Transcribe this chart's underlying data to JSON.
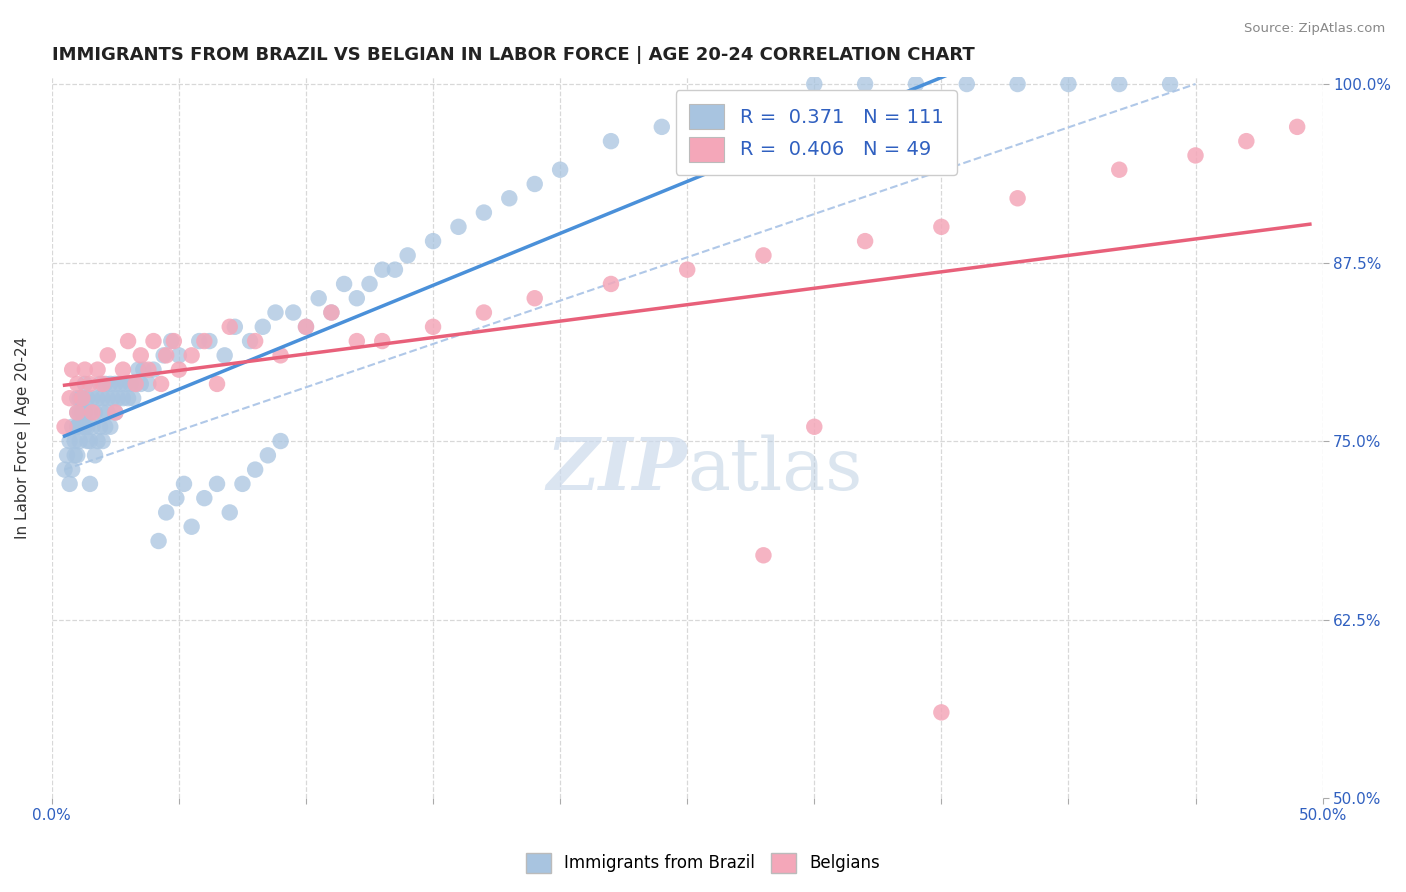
{
  "title": "IMMIGRANTS FROM BRAZIL VS BELGIAN IN LABOR FORCE | AGE 20-24 CORRELATION CHART",
  "source": "Source: ZipAtlas.com",
  "ylabel": "In Labor Force | Age 20-24",
  "xlim": [
    0.0,
    0.5
  ],
  "ylim": [
    0.5,
    1.005
  ],
  "brazil_R": 0.371,
  "brazil_N": 111,
  "belgian_R": 0.406,
  "belgian_N": 49,
  "brazil_color": "#a8c4e0",
  "belgian_color": "#f4a7b9",
  "brazil_line_color": "#4a90d9",
  "belgian_line_color": "#e8607a",
  "ref_line_color": "#b0c8e8",
  "background_color": "#ffffff",
  "grid_color": "#d8d8d8",
  "title_color": "#222222",
  "legend_text_color": "#3060c0",
  "watermark_color": "#dce8f4",
  "brazil_scatter_x": [
    0.005,
    0.006,
    0.007,
    0.007,
    0.008,
    0.008,
    0.009,
    0.009,
    0.01,
    0.01,
    0.01,
    0.01,
    0.01,
    0.011,
    0.011,
    0.011,
    0.012,
    0.012,
    0.012,
    0.013,
    0.013,
    0.013,
    0.014,
    0.014,
    0.014,
    0.015,
    0.015,
    0.015,
    0.016,
    0.016,
    0.017,
    0.017,
    0.018,
    0.018,
    0.019,
    0.019,
    0.02,
    0.02,
    0.02,
    0.021,
    0.021,
    0.022,
    0.022,
    0.023,
    0.023,
    0.024,
    0.025,
    0.025,
    0.026,
    0.027,
    0.028,
    0.029,
    0.03,
    0.031,
    0.032,
    0.033,
    0.034,
    0.035,
    0.036,
    0.038,
    0.04,
    0.042,
    0.044,
    0.045,
    0.047,
    0.049,
    0.05,
    0.052,
    0.055,
    0.058,
    0.06,
    0.062,
    0.065,
    0.068,
    0.07,
    0.072,
    0.075,
    0.078,
    0.08,
    0.083,
    0.085,
    0.088,
    0.09,
    0.095,
    0.1,
    0.105,
    0.11,
    0.115,
    0.12,
    0.125,
    0.13,
    0.135,
    0.14,
    0.15,
    0.16,
    0.17,
    0.18,
    0.19,
    0.2,
    0.22,
    0.24,
    0.26,
    0.28,
    0.3,
    0.32,
    0.34,
    0.36,
    0.38,
    0.4,
    0.42,
    0.44
  ],
  "brazil_scatter_y": [
    0.73,
    0.74,
    0.75,
    0.72,
    0.76,
    0.73,
    0.75,
    0.74,
    0.76,
    0.77,
    0.78,
    0.74,
    0.76,
    0.77,
    0.75,
    0.78,
    0.76,
    0.77,
    0.78,
    0.76,
    0.77,
    0.79,
    0.75,
    0.76,
    0.78,
    0.72,
    0.75,
    0.77,
    0.76,
    0.78,
    0.74,
    0.77,
    0.75,
    0.78,
    0.76,
    0.79,
    0.77,
    0.75,
    0.78,
    0.76,
    0.79,
    0.77,
    0.78,
    0.76,
    0.79,
    0.78,
    0.77,
    0.79,
    0.78,
    0.79,
    0.78,
    0.79,
    0.78,
    0.79,
    0.78,
    0.79,
    0.8,
    0.79,
    0.8,
    0.79,
    0.8,
    0.68,
    0.81,
    0.7,
    0.82,
    0.71,
    0.81,
    0.72,
    0.69,
    0.82,
    0.71,
    0.82,
    0.72,
    0.81,
    0.7,
    0.83,
    0.72,
    0.82,
    0.73,
    0.83,
    0.74,
    0.84,
    0.75,
    0.84,
    0.83,
    0.85,
    0.84,
    0.86,
    0.85,
    0.86,
    0.87,
    0.87,
    0.88,
    0.89,
    0.9,
    0.91,
    0.92,
    0.93,
    0.94,
    0.96,
    0.97,
    0.98,
    0.99,
    1.0,
    1.0,
    1.0,
    1.0,
    1.0,
    1.0,
    1.0,
    1.0
  ],
  "belgian_scatter_x": [
    0.005,
    0.007,
    0.008,
    0.01,
    0.01,
    0.012,
    0.013,
    0.015,
    0.016,
    0.018,
    0.02,
    0.022,
    0.025,
    0.028,
    0.03,
    0.033,
    0.035,
    0.038,
    0.04,
    0.043,
    0.045,
    0.048,
    0.05,
    0.055,
    0.06,
    0.065,
    0.07,
    0.08,
    0.09,
    0.1,
    0.11,
    0.12,
    0.13,
    0.15,
    0.17,
    0.19,
    0.22,
    0.25,
    0.28,
    0.32,
    0.35,
    0.38,
    0.42,
    0.45,
    0.47,
    0.49,
    0.3,
    0.28,
    0.35
  ],
  "belgian_scatter_y": [
    0.76,
    0.78,
    0.8,
    0.77,
    0.79,
    0.78,
    0.8,
    0.79,
    0.77,
    0.8,
    0.79,
    0.81,
    0.77,
    0.8,
    0.82,
    0.79,
    0.81,
    0.8,
    0.82,
    0.79,
    0.81,
    0.82,
    0.8,
    0.81,
    0.82,
    0.79,
    0.83,
    0.82,
    0.81,
    0.83,
    0.84,
    0.82,
    0.82,
    0.83,
    0.84,
    0.85,
    0.86,
    0.87,
    0.88,
    0.89,
    0.9,
    0.92,
    0.94,
    0.95,
    0.96,
    0.97,
    0.76,
    0.67,
    0.56
  ]
}
